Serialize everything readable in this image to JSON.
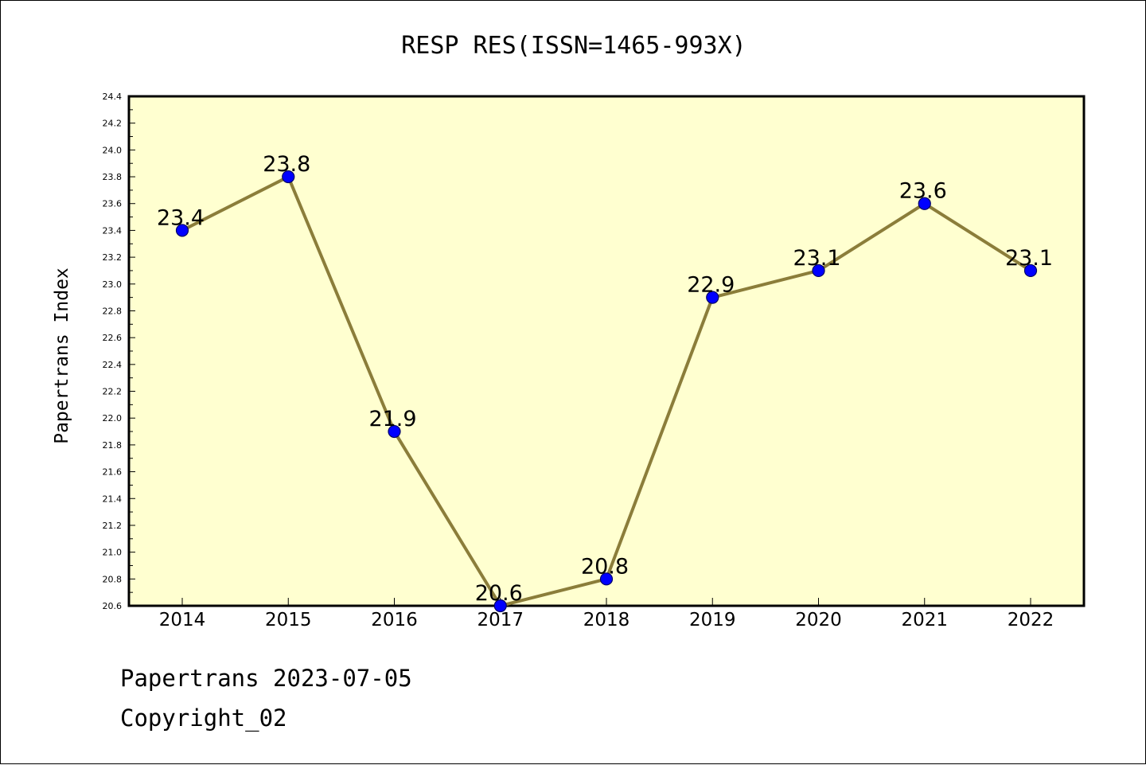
{
  "chart_data": {
    "type": "line",
    "title": "RESP RES(ISSN=1465-993X)",
    "xlabel": "",
    "ylabel": "Papertrans Index",
    "categories": [
      "2014",
      "2015",
      "2016",
      "2017",
      "2018",
      "2019",
      "2020",
      "2021",
      "2022"
    ],
    "values": [
      23.4,
      23.8,
      21.9,
      20.6,
      20.8,
      22.9,
      23.1,
      23.6,
      23.1
    ],
    "data_labels": [
      "23.4",
      "23.8",
      "21.9",
      "20.6",
      "20.8",
      "22.9",
      "23.1",
      "23.6",
      "23.1"
    ],
    "ylim": [
      20.6,
      24.4
    ],
    "yticks": [
      20.6,
      20.8,
      21.0,
      21.2,
      21.4,
      21.6,
      21.8,
      22.0,
      22.2,
      22.4,
      22.6,
      22.8,
      23.0,
      23.2,
      23.4,
      23.6,
      23.8,
      24.0,
      24.2,
      24.4
    ],
    "ytick_labels": [
      "20.6",
      "20.8",
      "21.0",
      "21.2",
      "21.4",
      "21.6",
      "21.8",
      "22.0",
      "22.2",
      "22.4",
      "22.6",
      "22.8",
      "23.0",
      "23.2",
      "23.4",
      "23.6",
      "23.8",
      "24.0",
      "24.2",
      "24.4"
    ],
    "grid": false,
    "legend": "none",
    "colors": {
      "plot_background": "#ffffd0",
      "line": "#8b7d3a",
      "marker_fill": "#0000ff",
      "marker_edge": "#000066"
    }
  },
  "footer": {
    "line1": "Papertrans 2023-07-05",
    "line2": "Copyright_02"
  }
}
